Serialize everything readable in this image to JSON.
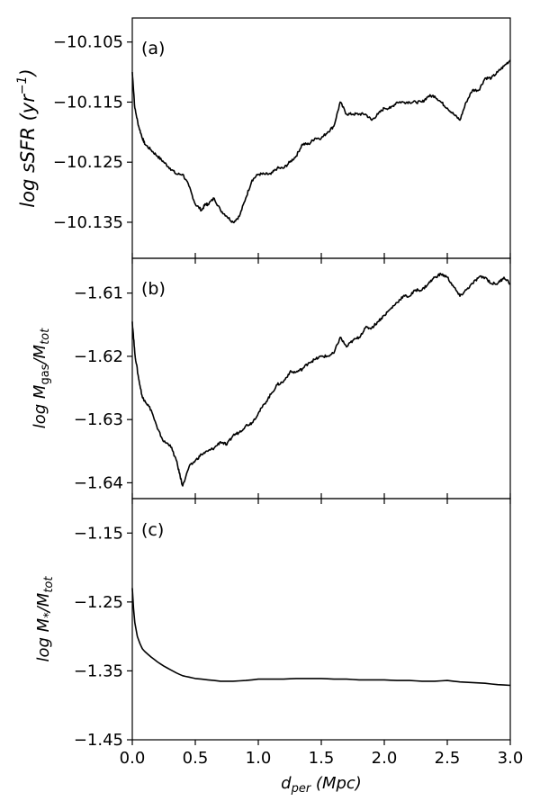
{
  "chart_data": [
    {
      "type": "line",
      "panel_label": "(a)",
      "ylabel_parts": [
        "log sSFR (yr",
        "−1",
        ")"
      ],
      "xlim": [
        0.0,
        3.0
      ],
      "ylim": [
        -10.141,
        -10.101
      ],
      "yticks": [
        -10.105,
        -10.115,
        -10.125,
        -10.135
      ],
      "ytick_labels": [
        "−10.105",
        "−10.115",
        "−10.125",
        "−10.135"
      ],
      "series": [
        {
          "x": [
            0.0,
            0.02,
            0.05,
            0.08,
            0.1,
            0.15,
            0.2,
            0.25,
            0.3,
            0.35,
            0.4,
            0.45,
            0.5,
            0.55,
            0.58,
            0.6,
            0.65,
            0.7,
            0.75,
            0.8,
            0.85,
            0.9,
            0.95,
            1.0,
            1.05,
            1.1,
            1.15,
            1.2,
            1.25,
            1.3,
            1.35,
            1.4,
            1.45,
            1.5,
            1.55,
            1.6,
            1.65,
            1.7,
            1.75,
            1.8,
            1.85,
            1.9,
            1.95,
            2.0,
            2.05,
            2.1,
            2.15,
            2.2,
            2.25,
            2.3,
            2.35,
            2.4,
            2.45,
            2.5,
            2.55,
            2.6,
            2.65,
            2.7,
            2.75,
            2.8,
            2.85,
            2.9,
            2.95,
            3.0
          ],
          "y": [
            -10.11,
            -10.116,
            -10.119,
            -10.121,
            -10.122,
            -10.123,
            -10.124,
            -10.125,
            -10.126,
            -10.127,
            -10.127,
            -10.129,
            -10.132,
            -10.133,
            -10.132,
            -10.132,
            -10.131,
            -10.133,
            -10.134,
            -10.135,
            -10.134,
            -10.131,
            -10.128,
            -10.127,
            -10.127,
            -10.127,
            -10.126,
            -10.126,
            -10.125,
            -10.124,
            -10.122,
            -10.122,
            -10.121,
            -10.121,
            -10.12,
            -10.119,
            -10.115,
            -10.117,
            -10.117,
            -10.117,
            -10.117,
            -10.118,
            -10.117,
            -10.116,
            -10.116,
            -10.115,
            -10.115,
            -10.115,
            -10.115,
            -10.115,
            -10.114,
            -10.114,
            -10.115,
            -10.116,
            -10.117,
            -10.118,
            -10.115,
            -10.113,
            -10.113,
            -10.111,
            -10.111,
            -10.11,
            -10.109,
            -10.108
          ]
        }
      ]
    },
    {
      "type": "line",
      "panel_label": "(b)",
      "ylabel_parts": [
        "log M",
        "gas",
        "/M",
        "tot"
      ],
      "xlim": [
        0.0,
        3.0
      ],
      "ylim": [
        -1.6425,
        -1.6045
      ],
      "yticks": [
        -1.61,
        -1.62,
        -1.63,
        -1.64
      ],
      "ytick_labels": [
        "−1.61",
        "−1.62",
        "−1.63",
        "−1.64"
      ],
      "series": [
        {
          "x": [
            0.0,
            0.02,
            0.05,
            0.08,
            0.1,
            0.15,
            0.2,
            0.25,
            0.3,
            0.35,
            0.38,
            0.4,
            0.45,
            0.5,
            0.55,
            0.6,
            0.65,
            0.7,
            0.75,
            0.8,
            0.85,
            0.9,
            0.95,
            1.0,
            1.05,
            1.1,
            1.15,
            1.2,
            1.25,
            1.3,
            1.35,
            1.4,
            1.45,
            1.5,
            1.55,
            1.6,
            1.65,
            1.7,
            1.75,
            1.8,
            1.85,
            1.9,
            1.95,
            2.0,
            2.05,
            2.1,
            2.15,
            2.2,
            2.25,
            2.3,
            2.35,
            2.4,
            2.45,
            2.5,
            2.55,
            2.6,
            2.65,
            2.7,
            2.75,
            2.8,
            2.85,
            2.9,
            2.95,
            3.0
          ],
          "y": [
            -1.6145,
            -1.6195,
            -1.6235,
            -1.6265,
            -1.627,
            -1.6285,
            -1.6315,
            -1.6335,
            -1.634,
            -1.6365,
            -1.639,
            -1.6405,
            -1.6375,
            -1.6365,
            -1.6355,
            -1.635,
            -1.6345,
            -1.6335,
            -1.634,
            -1.6325,
            -1.632,
            -1.631,
            -1.6305,
            -1.629,
            -1.6275,
            -1.626,
            -1.6245,
            -1.624,
            -1.6225,
            -1.6225,
            -1.622,
            -1.621,
            -1.6205,
            -1.62,
            -1.62,
            -1.6195,
            -1.617,
            -1.6185,
            -1.6175,
            -1.617,
            -1.6155,
            -1.6155,
            -1.6145,
            -1.6135,
            -1.6125,
            -1.6115,
            -1.6105,
            -1.6105,
            -1.6095,
            -1.6095,
            -1.6085,
            -1.6075,
            -1.607,
            -1.6075,
            -1.609,
            -1.6105,
            -1.6095,
            -1.6085,
            -1.6075,
            -1.6075,
            -1.6085,
            -1.6085,
            -1.6075,
            -1.6085
          ]
        }
      ]
    },
    {
      "type": "line",
      "panel_label": "(c)",
      "ylabel_parts": [
        "log M",
        "*",
        "/M",
        "tot"
      ],
      "xlabel_parts": [
        "d",
        "per",
        " (Mpc)"
      ],
      "xlim": [
        0.0,
        3.0
      ],
      "ylim": [
        -1.45,
        -1.1
      ],
      "yticks": [
        -1.15,
        -1.25,
        -1.35,
        -1.45
      ],
      "ytick_labels": [
        "−1.15",
        "−1.25",
        "−1.35",
        "−1.45"
      ],
      "xticks": [
        0.0,
        0.5,
        1.0,
        1.5,
        2.0,
        2.5,
        3.0
      ],
      "xtick_labels": [
        "0.0",
        "0.5",
        "1.0",
        "1.5",
        "2.0",
        "2.5",
        "3.0"
      ],
      "series": [
        {
          "x": [
            0.0,
            0.01,
            0.02,
            0.04,
            0.06,
            0.08,
            0.1,
            0.15,
            0.2,
            0.25,
            0.3,
            0.35,
            0.4,
            0.45,
            0.5,
            0.6,
            0.7,
            0.8,
            0.9,
            1.0,
            1.1,
            1.2,
            1.3,
            1.4,
            1.5,
            1.6,
            1.7,
            1.8,
            1.9,
            2.0,
            2.1,
            2.2,
            2.3,
            2.4,
            2.5,
            2.6,
            2.7,
            2.8,
            2.9,
            3.0
          ],
          "y": [
            -1.23,
            -1.26,
            -1.28,
            -1.3,
            -1.31,
            -1.318,
            -1.322,
            -1.33,
            -1.337,
            -1.343,
            -1.348,
            -1.353,
            -1.357,
            -1.359,
            -1.361,
            -1.363,
            -1.365,
            -1.365,
            -1.364,
            -1.362,
            -1.362,
            -1.362,
            -1.361,
            -1.361,
            -1.361,
            -1.362,
            -1.362,
            -1.363,
            -1.363,
            -1.363,
            -1.364,
            -1.364,
            -1.365,
            -1.365,
            -1.364,
            -1.366,
            -1.367,
            -1.368,
            -1.37,
            -1.371
          ]
        }
      ]
    }
  ]
}
